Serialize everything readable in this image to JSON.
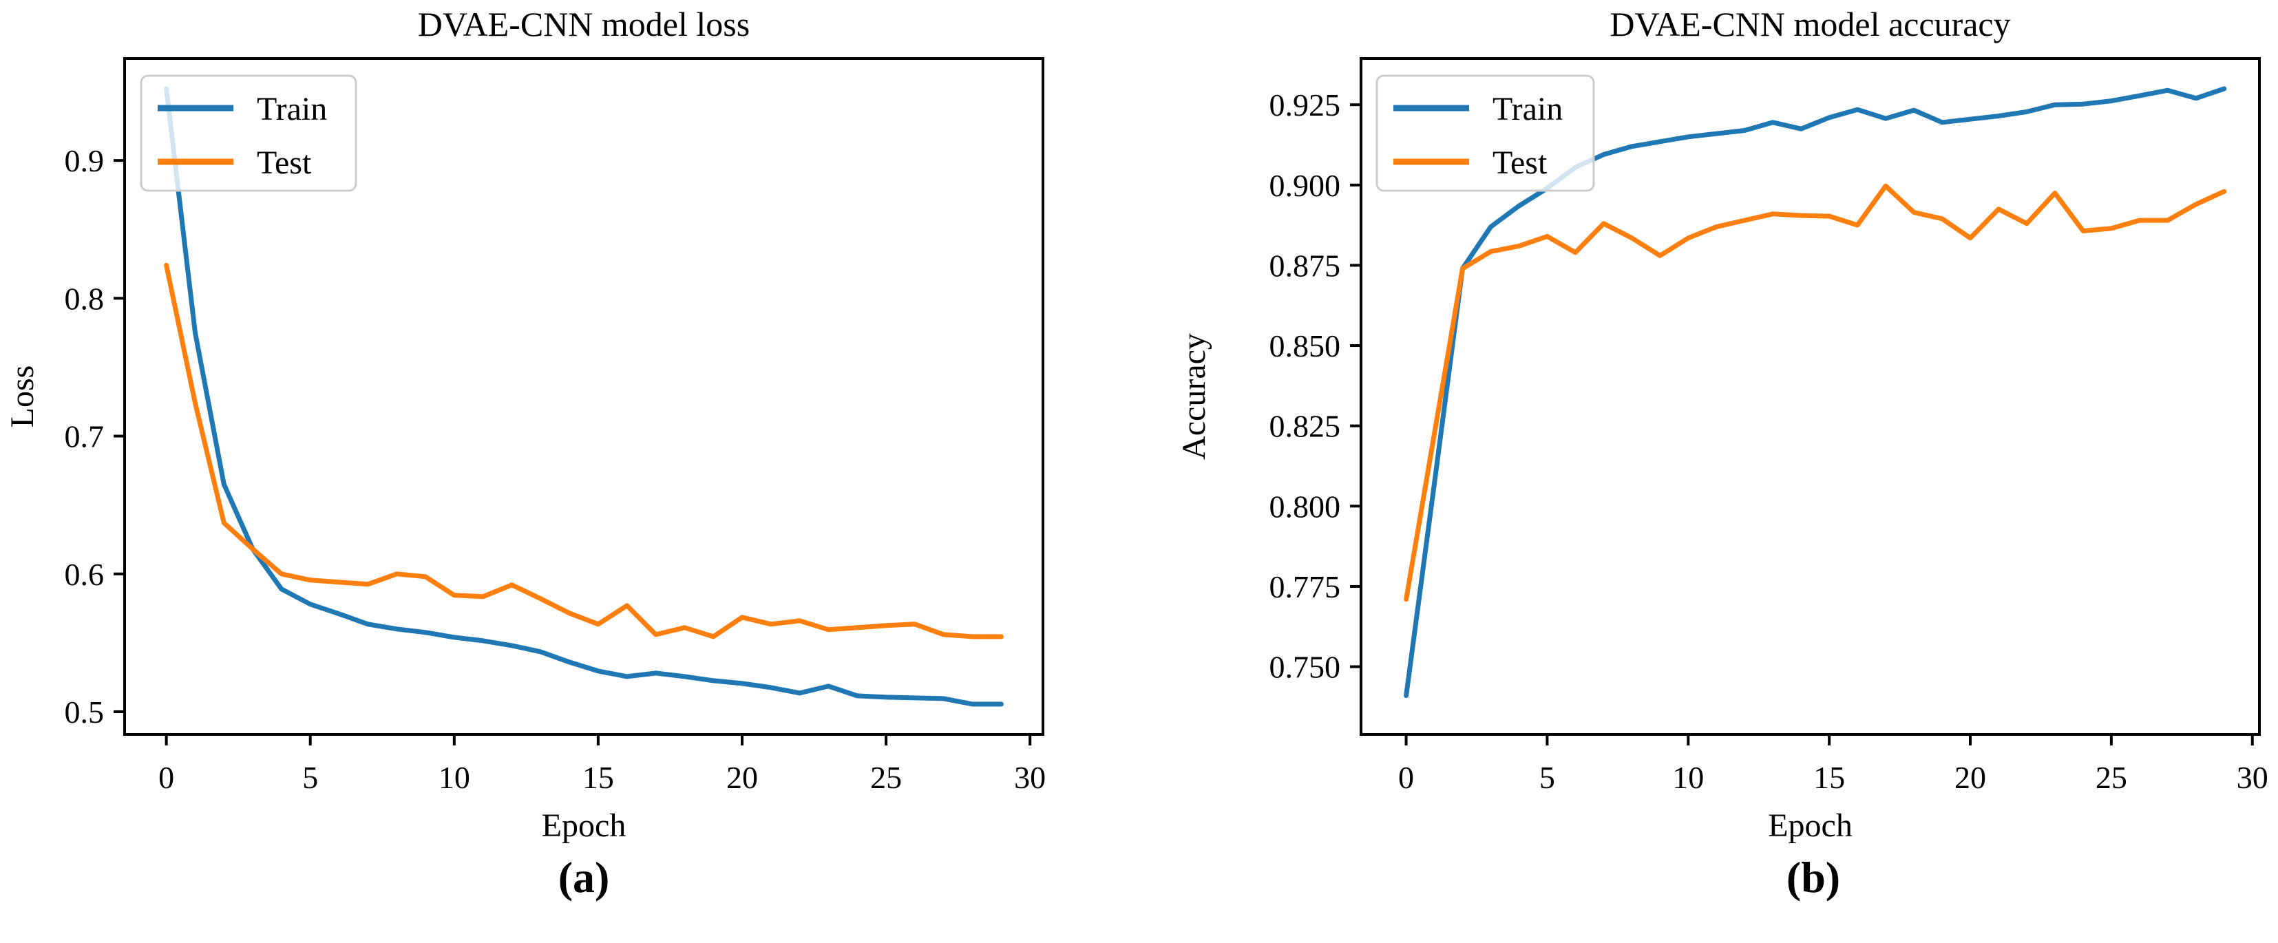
{
  "figure": {
    "background_color": "#ffffff",
    "axis_color": "#000000",
    "legend_border_color": "#cccccc",
    "train_color": "#1f77b4",
    "test_color": "#ff7f0e"
  },
  "chart_data": [
    {
      "id": "loss",
      "type": "line",
      "title": "DVAE-CNN model loss",
      "xlabel": "Epoch",
      "ylabel": "Loss",
      "caption": "(a)",
      "legend_position": "top-left",
      "grid": false,
      "xlim": [
        -1.45,
        30.45
      ],
      "ylim": [
        0.4835,
        0.974
      ],
      "xticks": [
        0,
        5,
        10,
        15,
        20,
        25,
        30
      ],
      "yticks": [
        0.5,
        0.6,
        0.7,
        0.8,
        0.9
      ],
      "ytick_decimals": 1,
      "x": [
        0,
        1,
        2,
        3,
        4,
        5,
        6,
        7,
        8,
        9,
        10,
        11,
        12,
        13,
        14,
        15,
        16,
        17,
        18,
        19,
        20,
        21,
        22,
        23,
        24,
        25,
        26,
        27,
        28,
        29
      ],
      "series": [
        {
          "name": "Train",
          "color": "#1f77b4",
          "values": [
            0.952,
            0.775,
            0.665,
            0.618,
            0.589,
            0.578,
            0.571,
            0.5635,
            0.56,
            0.5575,
            0.554,
            0.5515,
            0.548,
            0.5435,
            0.536,
            0.5295,
            0.5255,
            0.528,
            0.5255,
            0.5225,
            0.5205,
            0.5175,
            0.5135,
            0.5185,
            0.5115,
            0.5105,
            0.51,
            0.5095,
            0.5055,
            0.5055
          ]
        },
        {
          "name": "Test",
          "color": "#ff7f0e",
          "values": [
            0.824,
            0.724,
            0.637,
            0.618,
            0.6,
            0.5955,
            0.594,
            0.5925,
            0.6,
            0.598,
            0.5845,
            0.5835,
            0.592,
            0.582,
            0.5715,
            0.5635,
            0.577,
            0.556,
            0.561,
            0.5545,
            0.5685,
            0.5635,
            0.566,
            0.5595,
            0.561,
            0.5625,
            0.5635,
            0.556,
            0.5545,
            0.5545
          ]
        }
      ]
    },
    {
      "id": "accuracy",
      "type": "line",
      "title": "DVAE-CNN model accuracy",
      "xlabel": "Epoch",
      "ylabel": "Accuracy",
      "caption": "(b)",
      "legend_position": "top-left",
      "grid": false,
      "xlim": [
        -1.6,
        30.25
      ],
      "ylim": [
        0.7289,
        0.9394
      ],
      "xticks": [
        0,
        5,
        10,
        15,
        20,
        25,
        30
      ],
      "yticks": [
        0.75,
        0.775,
        0.8,
        0.825,
        0.85,
        0.875,
        0.9,
        0.925
      ],
      "ytick_decimals": 3,
      "x": [
        0,
        1,
        2,
        3,
        4,
        5,
        6,
        7,
        8,
        9,
        10,
        11,
        12,
        13,
        14,
        15,
        16,
        17,
        18,
        19,
        20,
        21,
        22,
        23,
        24,
        25,
        26,
        27,
        28,
        29
      ],
      "series": [
        {
          "name": "Train",
          "color": "#1f77b4",
          "values": [
            0.741,
            0.807,
            0.874,
            0.887,
            0.8935,
            0.899,
            0.9055,
            0.9095,
            0.912,
            0.9135,
            0.915,
            0.916,
            0.917,
            0.9195,
            0.9175,
            0.921,
            0.9235,
            0.9207,
            0.9233,
            0.9195,
            0.9205,
            0.9215,
            0.9228,
            0.925,
            0.9252,
            0.9262,
            0.9278,
            0.9295,
            0.927,
            0.93
          ]
        },
        {
          "name": "Test",
          "color": "#ff7f0e",
          "values": [
            0.771,
            0.8225,
            0.874,
            0.8793,
            0.881,
            0.884,
            0.879,
            0.888,
            0.8835,
            0.878,
            0.8835,
            0.887,
            0.889,
            0.891,
            0.8905,
            0.8903,
            0.8875,
            0.8997,
            0.8915,
            0.8895,
            0.8835,
            0.8925,
            0.888,
            0.8975,
            0.8857,
            0.8865,
            0.889,
            0.889,
            0.894,
            0.898
          ]
        }
      ]
    }
  ]
}
